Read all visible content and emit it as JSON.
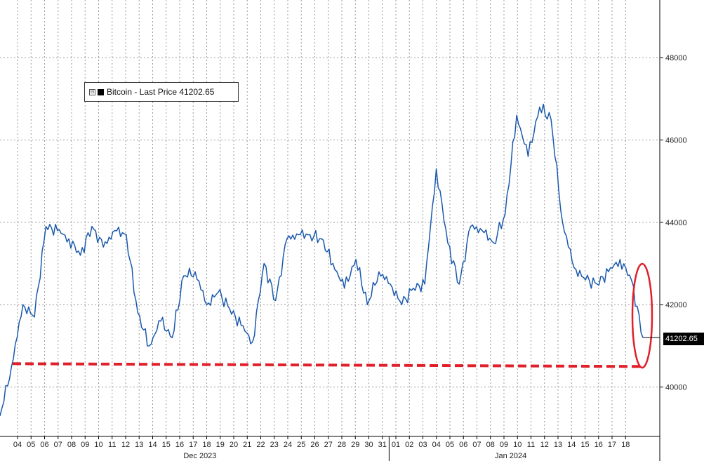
{
  "legend": {
    "label": "Bitcoin - Last Price 41202.65"
  },
  "last_price_tag": "41202.65",
  "colors": {
    "line": "#1f4e9c",
    "line_highlight": "#3b8ad8",
    "support": "#e0202a",
    "circle": "#e0202a"
  },
  "chart_data": {
    "type": "line",
    "title": "",
    "xlabel": "",
    "ylabel": "",
    "ylim": [
      38800,
      49400
    ],
    "y_ticks": [
      40000,
      42000,
      44000,
      46000,
      48000
    ],
    "day_labels": [
      "04",
      "05",
      "06",
      "07",
      "08",
      "09",
      "10",
      "11",
      "12",
      "13",
      "14",
      "15",
      "16",
      "17",
      "18",
      "19",
      "20",
      "21",
      "22",
      "23",
      "24",
      "25",
      "26",
      "27",
      "28",
      "29",
      "30",
      "31",
      "01",
      "02",
      "03",
      "04",
      "05",
      "06",
      "07",
      "08",
      "09",
      "10",
      "11",
      "12",
      "13",
      "14",
      "15",
      "16",
      "17",
      "18"
    ],
    "month_labels": [
      "Dec 2023",
      "Jan 2024"
    ],
    "series": [
      {
        "values": [
          39300,
          40500,
          42000,
          41700,
          43900,
          43800,
          43600,
          43200,
          43900,
          43400,
          43800,
          43700,
          41800,
          41000,
          41600,
          41200,
          42700,
          42800,
          42000,
          42300,
          41900,
          41500,
          41100,
          43000,
          42100,
          43600,
          43700,
          43700,
          43600,
          43000,
          42400,
          43100,
          42000,
          42800,
          42500,
          42000,
          42400,
          42500,
          45300,
          43500,
          42500,
          43900,
          43800,
          43500,
          44200,
          46600,
          45600,
          46800,
          46500,
          44000,
          42900,
          42600,
          42500,
          42800,
          43100,
          42600,
          41200
        ]
      }
    ],
    "annotations": {
      "support_level": 40550,
      "last_price": 41202.65
    }
  }
}
